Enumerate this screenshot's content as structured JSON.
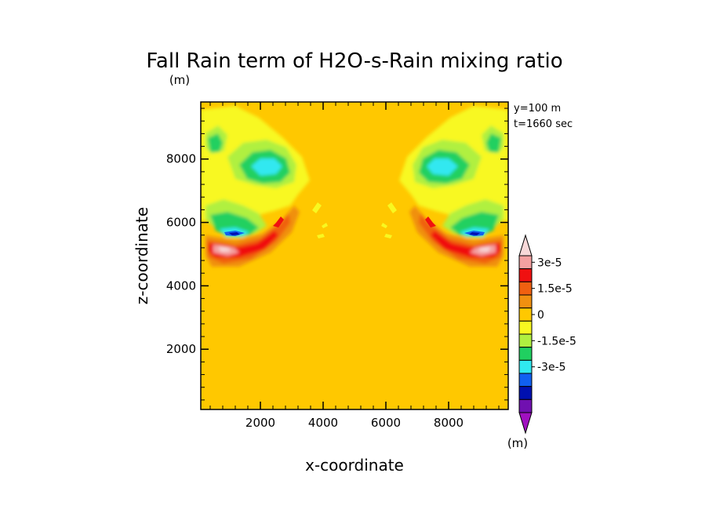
{
  "chart_data": {
    "type": "heatmap",
    "title": "Fall Rain term of H2O-s-Rain mixing ratio",
    "title_unit": "(m)",
    "xlabel": "x-coordinate",
    "ylabel": "z-coordinate",
    "xlim": [
      100,
      9900
    ],
    "ylim": [
      100,
      9800
    ],
    "xticks": [
      2000,
      4000,
      6000,
      8000
    ],
    "yticks": [
      2000,
      4000,
      6000,
      8000
    ],
    "annotations": [
      "y=100 m",
      "t=1660 sec"
    ],
    "colorbar": {
      "unit": "(m)",
      "tick_labels": [
        "3e-5",
        "1.5e-5",
        "0",
        "-1.5e-5",
        "-3e-5"
      ],
      "levels_top_to_bottom": [
        {
          "value": 3e-05,
          "color": "#f7d8d8"
        },
        {
          "value": 2.5e-05,
          "color": "#f4a0a0"
        },
        {
          "value": 2e-05,
          "color": "#f01010"
        },
        {
          "value": 1.5e-05,
          "color": "#f06010"
        },
        {
          "value": 1e-05,
          "color": "#f09010"
        },
        {
          "value": 5e-06,
          "color": "#ffc800"
        },
        {
          "value": 0,
          "color": "#f8f820"
        },
        {
          "value": -5e-06,
          "color": "#b0f040"
        },
        {
          "value": -1e-05,
          "color": "#20d060"
        },
        {
          "value": -1.5e-05,
          "color": "#30e8f0"
        },
        {
          "value": -2e-05,
          "color": "#1060f0"
        },
        {
          "value": -2.5e-05,
          "color": "#0010b0"
        },
        {
          "value": -3e-05,
          "color": "#7010b0"
        },
        {
          "value": -3.5e-05,
          "color": "#a010c0"
        }
      ]
    },
    "background_value_color": "#ffc800",
    "features": [
      {
        "kind": "lobe",
        "x": 1000,
        "z": 5300,
        "sign": "positive",
        "peak": 3e-05
      },
      {
        "kind": "lobe",
        "x": 9000,
        "z": 5300,
        "sign": "positive",
        "peak": 3e-05
      },
      {
        "kind": "lobe",
        "x": 2200,
        "z": 8000,
        "sign": "negative",
        "peak": -1.5e-05
      },
      {
        "kind": "lobe",
        "x": 7800,
        "z": 8000,
        "sign": "negative",
        "peak": -1.5e-05
      },
      {
        "kind": "lobe",
        "x": 1500,
        "z": 5700,
        "sign": "negative",
        "peak": -2.5e-05
      },
      {
        "kind": "lobe",
        "x": 8500,
        "z": 5700,
        "sign": "negative",
        "peak": -2.5e-05
      }
    ]
  }
}
